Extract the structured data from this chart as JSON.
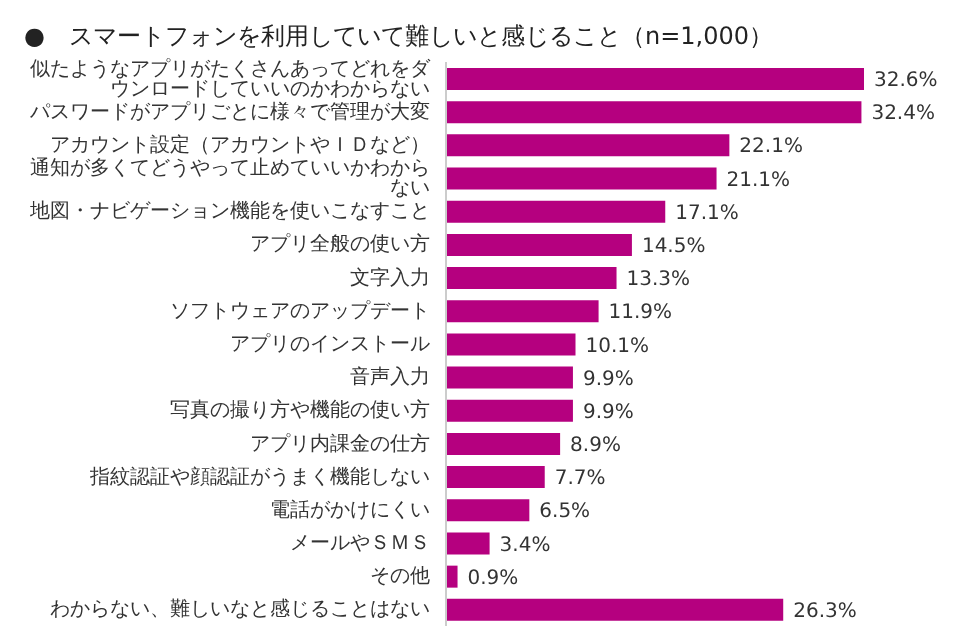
{
  "chart_data": {
    "type": "bar",
    "orientation": "horizontal",
    "title": "●　スマートフォンを利用していて難しいと感じること（n=1,000）",
    "categories": [
      "似たようなアプリがたくさんあってどれをダウンロードしていいのかわからない",
      "パスワードがアプリごとに様々で管理が大変",
      "アカウント設定（アカウントやＩＤなど）",
      "通知が多くてどうやって止めていいかわからない",
      "地図・ナビゲーション機能を使いこなすこと",
      "アプリ全般の使い方",
      "文字入力",
      "ソフトウェアのアップデート",
      "アプリのインストール",
      "音声入力",
      "写真の撮り方や機能の使い方",
      "アプリ内課金の仕方",
      "指紋認証や顔認証がうまく機能しない",
      "電話がかけにくい",
      "メールやＳＭＳ",
      "その他",
      "わからない、難しいなと感じることはない"
    ],
    "values": [
      32.6,
      32.4,
      22.1,
      21.1,
      17.1,
      14.5,
      13.3,
      11.9,
      10.1,
      9.9,
      9.9,
      8.9,
      7.7,
      6.5,
      3.4,
      0.9,
      26.3
    ],
    "value_labels": [
      "32.6%",
      "32.4%",
      "22.1%",
      "21.1%",
      "17.1%",
      "14.5%",
      "13.3%",
      "11.9%",
      "10.1%",
      "9.9%",
      "9.9%",
      "8.9%",
      "7.7%",
      "6.5%",
      "3.4%",
      "0.9%",
      "26.3%"
    ],
    "color": "#b5007f"
  }
}
